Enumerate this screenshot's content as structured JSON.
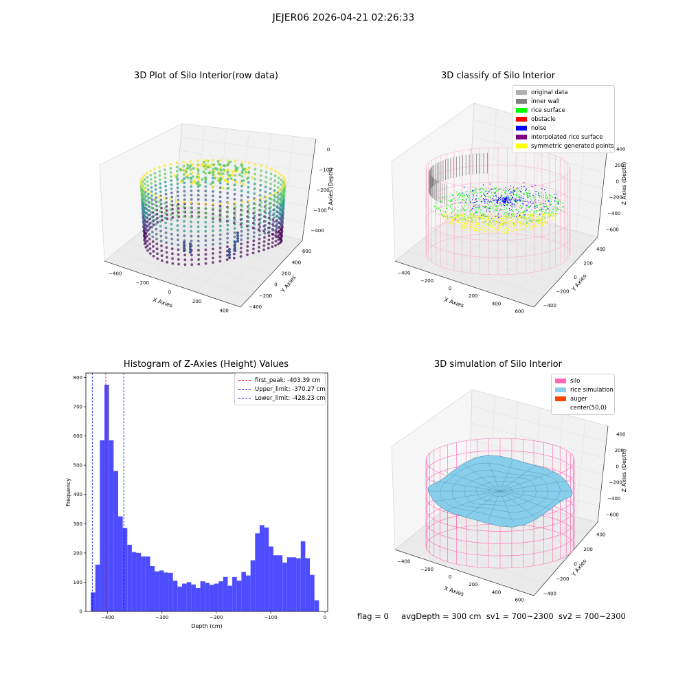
{
  "suptitle": "JEJER06 2026-04-21 02:26:33",
  "footer": {
    "flag": "flag = 0",
    "avg_depth": "avgDepth = 300 cm",
    "sv1": "sv1 = 700~2300",
    "sv2": "sv2 = 700~2300"
  },
  "panels": {
    "raw": {
      "title": "3D Plot of Silo Interior(row data)",
      "xlabel": "X Axies",
      "ylabel": "Y Axies",
      "zlabel": "Z Axies (Depth)",
      "xticks": [
        "−400",
        "−200",
        "0",
        "200",
        "400"
      ],
      "yticks": [
        "−400",
        "−200",
        "0",
        "200",
        "400",
        "600"
      ],
      "zticks": [
        "0",
        "−100",
        "−200",
        "−300",
        "−400"
      ],
      "colormap": [
        "#440154",
        "#3b528b",
        "#21918c",
        "#5ec962",
        "#fde725"
      ]
    },
    "classify": {
      "title": "3D classify of Silo Interior",
      "xlabel": "X Axies",
      "ylabel": "Y Axies",
      "zlabel": "Z Axies (Depth)",
      "xticks": [
        "−400",
        "−200",
        "0",
        "200",
        "400",
        "600"
      ],
      "yticks": [
        "−400",
        "−200",
        "0",
        "200",
        "400"
      ],
      "zticks": [
        "400",
        "200",
        "0",
        "−200",
        "−400",
        "−600"
      ],
      "legend": [
        {
          "label": "original data",
          "color": "#b0b0b0"
        },
        {
          "label": "inner wall",
          "color": "#808080"
        },
        {
          "label": "rice surface",
          "color": "#00ff00"
        },
        {
          "label": "obstacle",
          "color": "#ff0000"
        },
        {
          "label": "noise",
          "color": "#0000ff"
        },
        {
          "label": "interpolated rice surface",
          "color": "#800080"
        },
        {
          "label": "symmetric generated points",
          "color": "#ffff00"
        }
      ],
      "silo_color": "#ffa6c9"
    },
    "simulation": {
      "title": "3D simulation of Silo Interior",
      "xlabel": "X Axies",
      "ylabel": "Y Axies",
      "zlabel": "Z Axies (Depth)",
      "xticks": [
        "−400",
        "−200",
        "0",
        "200",
        "400",
        "600"
      ],
      "yticks": [
        "−400",
        "−200",
        "0",
        "200",
        "400"
      ],
      "zticks": [
        "400",
        "200",
        "0",
        "−200",
        "−400",
        "−600"
      ],
      "legend": [
        {
          "label": "silo",
          "color": "#ff69b4"
        },
        {
          "label": "rice simulation",
          "color": "#87ceeb"
        },
        {
          "label": "auger",
          "color": "#ff4500"
        },
        {
          "label": "center(50,0)",
          "color": ""
        }
      ]
    }
  },
  "chart_data": {
    "type": "bar",
    "title": "Histogram of Z-Axies (Height) Values",
    "xlabel": "Depth (cm)",
    "ylabel": "Frequency",
    "xlim": [
      -440,
      5
    ],
    "ylim": [
      0,
      815
    ],
    "xticks": [
      -400,
      -300,
      -200,
      -100,
      0
    ],
    "xtick_labels": [
      "−400",
      "−300",
      "−200",
      "−100",
      "0"
    ],
    "yticks": [
      0,
      100,
      200,
      300,
      400,
      500,
      600,
      700,
      800
    ],
    "bar_color": "#4d4dff",
    "bin_width": 8.4,
    "bin_starts": [
      -431.0,
      -422.6,
      -414.2,
      -405.8,
      -397.4,
      -389.0,
      -380.6,
      -372.2,
      -363.8,
      -355.4,
      -347.0,
      -338.6,
      -330.2,
      -321.8,
      -313.4,
      -305.0,
      -296.6,
      -288.2,
      -279.8,
      -271.4,
      -263.0,
      -254.6,
      -246.2,
      -237.8,
      -229.4,
      -221.0,
      -212.6,
      -204.2,
      -195.8,
      -187.4,
      -179.0,
      -170.6,
      -162.2,
      -153.8,
      -145.4,
      -137.0,
      -128.6,
      -120.2,
      -111.8,
      -103.4,
      -95.0,
      -86.6,
      -78.2,
      -69.8,
      -61.4,
      -53.0,
      -44.6,
      -36.2,
      -27.8,
      -19.4
    ],
    "values": [
      65,
      160,
      585,
      775,
      585,
      480,
      325,
      285,
      228,
      203,
      200,
      188,
      188,
      155,
      137,
      140,
      133,
      132,
      105,
      85,
      95,
      100,
      92,
      80,
      103,
      98,
      91,
      95,
      103,
      118,
      88,
      118,
      105,
      135,
      123,
      175,
      267,
      295,
      287,
      222,
      192,
      192,
      167,
      185,
      185,
      182,
      240,
      182,
      125,
      38
    ],
    "vlines": [
      {
        "label": "first_peak: -403.39 cm",
        "x": -403.39,
        "color": "#ff0000"
      },
      {
        "label": "Upper_limit: -370.27 cm",
        "x": -370.27,
        "color": "#0000ff"
      },
      {
        "label": "Lower_limit: -428.23 cm",
        "x": -428.23,
        "color": "#0000ff"
      }
    ],
    "legend_position": "top-right"
  }
}
